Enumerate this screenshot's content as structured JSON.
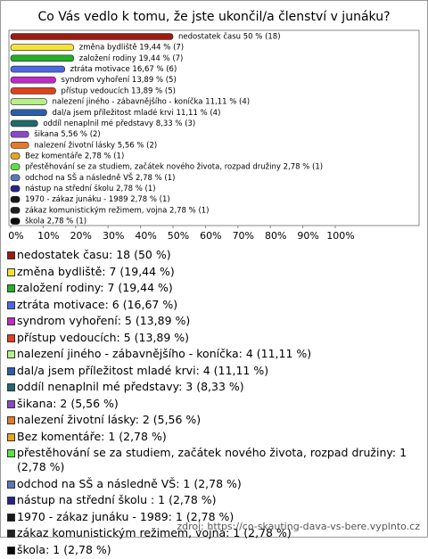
{
  "chart_data": {
    "type": "bar",
    "title": "Co Vás vedlo k tomu, že jste ukončil/a členství v junáku?",
    "values": [
      50,
      19.44,
      19.44,
      16.67,
      13.89,
      13.89,
      11.11,
      11.11,
      8.33,
      5.56,
      5.56,
      2.78,
      2.78,
      2.78,
      2.78,
      2.78,
      2.78,
      2.78
    ],
    "value_labels": [
      "nedostatek času 50 % (18)",
      "změna bydliště 19,44 % (7)",
      "založení rodiny 19,44 % (7)",
      "ztráta motivace 16,67 % (6)",
      "syndrom vyhoření 13,89 % (5)",
      "přístup vedoucích 13,89 % (5)",
      "nalezení jiného - zábavnějšího - koníčka 11,11 % (4)",
      "dal/a jsem příležitost mladé krvi 11,11 % (4)",
      "oddíl nenaplnil mé představy 8,33 % (3)",
      "šikana 5,56 % (2)",
      "nalezení životní lásky 5,56 % (2)",
      "Bez komentáře 2,78 % (1)",
      "přestěhování se za studiem, začátek nového života, rozpad družiny 2,78 % (1)",
      "odchod na SŠ a následně VŠ 2,78 % (1)",
      "nástup na střední školu  2,78 % (1)",
      "1970 - zákaz junáku - 1989 2,78 % (1)",
      "zákaz komunistickým režimem, vojna 2,78 % (1)",
      "škola 2,78 % (1)"
    ],
    "legend_labels": [
      "nedostatek času: 18 (50 %)",
      "změna bydliště: 7 (19,44 %)",
      "založení rodiny: 7 (19,44 %)",
      "ztráta motivace: 6 (16,67 %)",
      "syndrom vyhoření: 5 (13,89 %)",
      "přístup vedoucích: 5 (13,89 %)",
      "nalezení jiného - zábavnějšího - koníčka: 4 (11,11 %)",
      "dal/a jsem příležitost mladé krvi: 4 (11,11 %)",
      "oddíl nenaplnil mé představy: 3 (8,33 %)",
      "šikana: 2 (5,56 %)",
      "nalezení životní lásky: 2 (5,56 %)",
      "Bez komentáře: 1 (2,78 %)",
      "přestěhování se za studiem, začátek nového života, rozpad družiny: 1 (2,78 %)",
      "odchod na SŠ a následně VŠ: 1 (2,78 %)",
      "nástup na střední školu : 1 (2,78 %)",
      "1970 - zákaz junáku - 1989: 1 (2,78 %)",
      "zákaz komunistickým režimem, vojna: 1 (2,78 %)",
      "škola: 1 (2,78 %)"
    ],
    "colors": [
      "#9c1a12",
      "#f2e23a",
      "#22b02a",
      "#4a68e0",
      "#c02ac8",
      "#e0401c",
      "#b8f088",
      "#2a5ea8",
      "#1f6a6a",
      "#8a48c8",
      "#e07c2a",
      "#e6a51e",
      "#5ee040",
      "#5a78b8",
      "#24248c",
      "#181818",
      "#202020",
      "#0a0a0a"
    ],
    "xlim": [
      0,
      100
    ],
    "xticks": [
      {
        "value": 0,
        "label": "0%"
      },
      {
        "value": 10,
        "label": "10%"
      },
      {
        "value": 20,
        "label": "20%"
      },
      {
        "value": 30,
        "label": "30%"
      },
      {
        "value": 40,
        "label": "40%"
      },
      {
        "value": 50,
        "label": "50%"
      },
      {
        "value": 60,
        "label": "60%"
      },
      {
        "value": 70,
        "label": "70%"
      },
      {
        "value": 80,
        "label": "80%"
      },
      {
        "value": 90,
        "label": "90%"
      },
      {
        "value": 100,
        "label": "100%"
      }
    ],
    "source": "zdroj: https://co-skauting-dava-vs-bere.vyplnto.cz"
  }
}
